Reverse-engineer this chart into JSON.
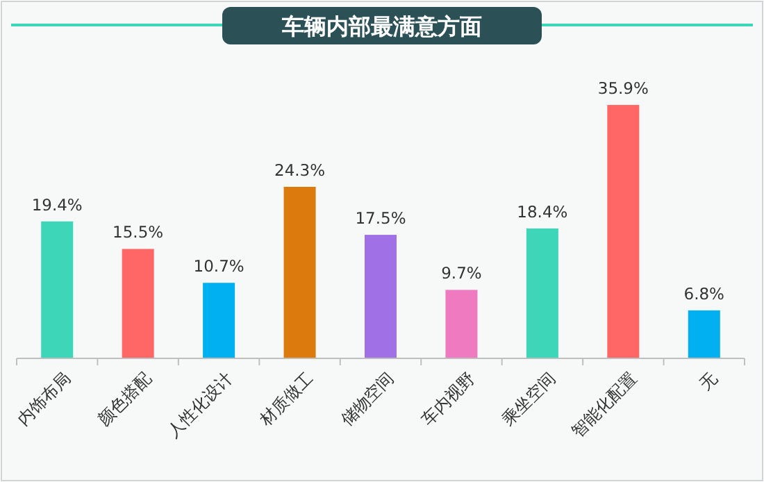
{
  "chart_data": {
    "type": "bar",
    "title": "车辆内部最满意方面",
    "categories": [
      "内饰布局",
      "颜色搭配",
      "人性化设计",
      "材质做工",
      "储物空间",
      "车内视野",
      "乘坐空间",
      "智能化配置",
      "无"
    ],
    "values": [
      19.4,
      15.5,
      10.7,
      24.3,
      17.5,
      9.7,
      18.4,
      35.9,
      6.8
    ],
    "value_labels": [
      "19.4%",
      "15.5%",
      "10.7%",
      "24.3%",
      "17.5%",
      "9.7%",
      "18.4%",
      "35.9%",
      "6.8%"
    ],
    "colors": [
      "#3dd6b8",
      "#ff6666",
      "#00b0f0",
      "#dd7a0e",
      "#a070e6",
      "#f07ac0",
      "#3dd6b8",
      "#ff6666",
      "#00b0f0"
    ]
  }
}
